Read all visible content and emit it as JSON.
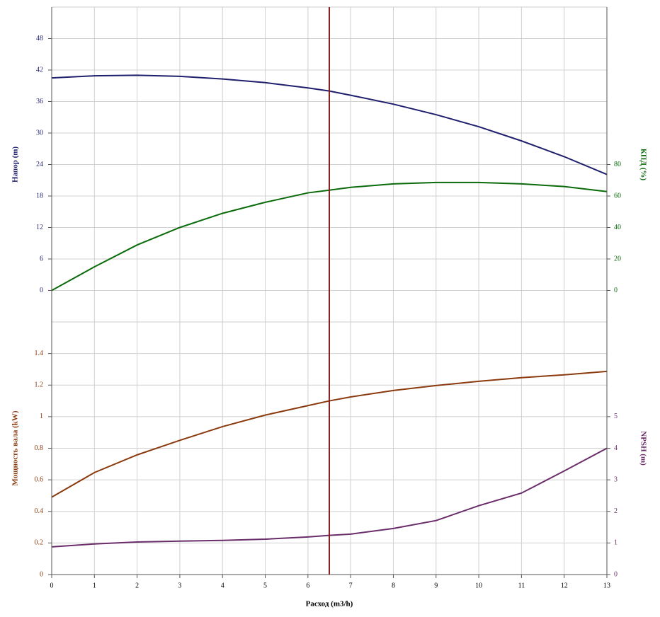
{
  "chart_data": [
    {
      "type": "line",
      "ylabel": "Напор (m)",
      "y2label": "КПД (%)",
      "x": [
        0,
        1,
        2,
        3,
        4,
        5,
        6,
        6.5,
        7,
        8,
        9,
        10,
        11,
        12,
        13
      ],
      "xlim": [
        0,
        13
      ],
      "ylim": [
        -6,
        54
      ],
      "yticks": [
        0,
        6,
        12,
        18,
        24,
        30,
        36,
        42,
        48
      ],
      "y2lim": [
        -20,
        180
      ],
      "y2ticks": [
        0,
        20,
        40,
        60,
        80
      ],
      "grid": true,
      "vline": 6.5,
      "vline_color": "#8b2323",
      "series": [
        {
          "name": "Напор",
          "color": "#1f1f6e",
          "values": [
            40.5,
            40.9,
            41.0,
            40.8,
            40.3,
            39.6,
            38.6,
            38.0,
            37.2,
            35.5,
            33.5,
            31.2,
            28.5,
            25.5,
            22.1
          ]
        },
        {
          "name": "КПД",
          "color": "#0b6b0b",
          "axis": "y2",
          "values": [
            0,
            15,
            28.9,
            40,
            49,
            56,
            62,
            63.7,
            65.5,
            67.7,
            68.6,
            68.6,
            67.7,
            66,
            62.8
          ]
        }
      ]
    },
    {
      "type": "line",
      "ylabel": "Мощность вала (kW)",
      "y2label": "NPSH (m)",
      "xlabel": "Расход (m3/h)",
      "x": [
        0,
        1,
        2,
        3,
        4,
        5,
        6,
        6.5,
        7,
        8,
        9,
        10,
        11,
        12,
        13
      ],
      "xlim": [
        0,
        13
      ],
      "xticks": [
        0,
        1,
        2,
        3,
        4,
        5,
        6,
        7,
        8,
        9,
        10,
        11,
        12,
        13
      ],
      "ylim": [
        0,
        1.6
      ],
      "yticks": [
        0,
        0.2,
        0.4,
        0.6,
        0.8,
        1,
        1.2,
        1.4
      ],
      "y2lim": [
        0,
        8
      ],
      "y2ticks": [
        0,
        1,
        2,
        3,
        4,
        5
      ],
      "grid": true,
      "series": [
        {
          "name": "Мощность вала",
          "color": "#8b3a0e",
          "values": [
            0.49,
            0.646,
            0.758,
            0.85,
            0.937,
            1.01,
            1.07,
            1.1,
            1.125,
            1.166,
            1.197,
            1.224,
            1.247,
            1.265,
            1.287
          ]
        },
        {
          "name": "NPSH",
          "color": "#6a2d6a",
          "axis": "y2",
          "values": [
            0.876,
            0.97,
            1.03,
            1.06,
            1.08,
            1.12,
            1.19,
            1.24,
            1.28,
            1.46,
            1.71,
            2.18,
            2.58,
            3.28,
            4.0
          ]
        }
      ]
    }
  ]
}
